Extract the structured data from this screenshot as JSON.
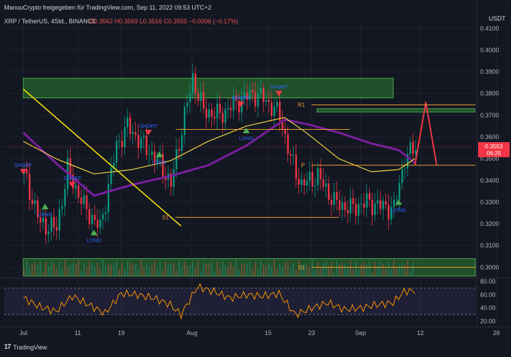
{
  "header": {
    "title": "ManuuCrypto freigegeben für TradingView.com, Sep 11, 2022 09:53 UTC+2",
    "symbol": "XRP / TetherUS, 4Std., BINANCE",
    "ohlc": "O0.3562 H0.3569 L0.3516 C0.3555 −0.0006 (−0.17%)"
  },
  "price_tag": {
    "price": "0.3553",
    "countdown": "06:25"
  },
  "footer": {
    "brand": "TradingView",
    "logo_glyph": "17"
  },
  "chart_data": {
    "type": "line",
    "ylabel": "USDT",
    "ylim": [
      0.296,
      0.412
    ],
    "y_ticks": [
      "0.4100",
      "0.4000",
      "0.3900",
      "0.3800",
      "0.3700",
      "0.3600",
      "0.3500",
      "0.3400",
      "0.3300",
      "0.3200",
      "0.3100",
      "0.3000"
    ],
    "x_ticks": [
      "Jul",
      "11",
      "19",
      "Aug",
      "15",
      "23",
      "Sep",
      "12",
      "26"
    ],
    "price_series": {
      "name": "XRP / TetherUS",
      "x": [
        "Jul 1",
        "Jul 4",
        "Jul 7",
        "Jul 9",
        "Jul 12",
        "Jul 15",
        "Jul 18",
        "Jul 20",
        "Jul 23",
        "Jul 26",
        "Jul 28",
        "Jul 30",
        "Aug 1",
        "Aug 3",
        "Aug 6",
        "Aug 9",
        "Aug 12",
        "Aug 14",
        "Aug 17",
        "Aug 19",
        "Aug 21",
        "Aug 24",
        "Aug 27",
        "Aug 30",
        "Sep 2",
        "Sep 5",
        "Sep 7",
        "Sep 9",
        "Sep 11"
      ],
      "y": [
        0.343,
        0.32,
        0.318,
        0.345,
        0.328,
        0.318,
        0.356,
        0.365,
        0.356,
        0.348,
        0.338,
        0.364,
        0.387,
        0.372,
        0.37,
        0.376,
        0.38,
        0.378,
        0.37,
        0.35,
        0.338,
        0.342,
        0.33,
        0.327,
        0.33,
        0.328,
        0.327,
        0.35,
        0.3555
      ],
      "color": "#089981"
    },
    "ma_fast": {
      "x": [
        "Jul 1",
        "Jul 7",
        "Jul 14",
        "Jul 21",
        "Jul 28",
        "Aug 4",
        "Aug 11",
        "Aug 18",
        "Aug 22",
        "Aug 28",
        "Sep 3",
        "Sep 8",
        "Sep 11"
      ],
      "y": [
        0.358,
        0.35,
        0.343,
        0.345,
        0.349,
        0.358,
        0.365,
        0.369,
        0.362,
        0.35,
        0.344,
        0.345,
        0.35
      ],
      "color": "#f5d742"
    },
    "ma_slow": {
      "x": [
        "Jul 1",
        "Jul 7",
        "Jul 14",
        "Jul 21",
        "Jul 28",
        "Aug 4",
        "Aug 11",
        "Aug 18",
        "Aug 22",
        "Aug 28",
        "Sep 3",
        "Sep 8",
        "Sep 11"
      ],
      "y": [
        0.362,
        0.348,
        0.333,
        0.338,
        0.342,
        0.347,
        0.356,
        0.368,
        0.366,
        0.362,
        0.357,
        0.354,
        0.348
      ],
      "color": "#7b1fa2"
    },
    "trendline": {
      "x": [
        "Jul 1",
        "Jul 30"
      ],
      "y": [
        0.382,
        0.319
      ],
      "color": "#f5e10a"
    },
    "zones": [
      {
        "x": [
          "Jul 1",
          "Sep 7"
        ],
        "y": [
          0.378,
          0.387
        ],
        "color": "#2e7d32"
      },
      {
        "x": [
          "Aug 24",
          "Sep 22"
        ],
        "y": [
          0.3715,
          0.373
        ],
        "color": "#2e7d32"
      },
      {
        "x": [
          "Jul 1",
          "Oct 1"
        ],
        "y": [
          0.296,
          0.304
        ],
        "color": "#2e7d32"
      }
    ],
    "levels": [
      {
        "label": "R1",
        "price": 0.3748,
        "x": [
          "Aug 23",
          "Oct 1"
        ],
        "color": "#f0a030"
      },
      {
        "label": "P",
        "price": 0.347,
        "x": [
          "Aug 23",
          "Oct 1"
        ],
        "color": "#f0a030"
      },
      {
        "label": "S1",
        "price": 0.3,
        "x": [
          "Aug 23",
          "Oct 1"
        ],
        "color": "#f0a030"
      },
      {
        "label": "S1",
        "price": 0.323,
        "x": [
          "Jul 29",
          "Aug 28"
        ],
        "color": "#f0a030"
      },
      {
        "label": "",
        "price": 0.3635,
        "x": [
          "Jul 29",
          "Aug 30"
        ],
        "color": "#f0a030"
      }
    ],
    "forecast": {
      "x": [
        "Sep 11",
        "Sep 13",
        "Sep 15"
      ],
      "y": [
        0.347,
        0.376,
        0.347
      ],
      "color": "#f23645"
    },
    "signals": [
      {
        "text": "SHORT",
        "x": "Jul 1",
        "price": 0.344,
        "kind": "short"
      },
      {
        "text": "LONG",
        "x": "Jul 5",
        "price": 0.328,
        "kind": "long"
      },
      {
        "text": "SHORT",
        "x": "Jul 10",
        "price": 0.338,
        "kind": "short"
      },
      {
        "text": "LONG",
        "x": "Jul 14",
        "price": 0.316,
        "kind": "long"
      },
      {
        "text": "SHORT",
        "x": "Jul 24",
        "price": 0.362,
        "kind": "short"
      },
      {
        "text": "LONG",
        "x": "Jul 26",
        "price": 0.352,
        "kind": "long"
      },
      {
        "text": "SHORT",
        "x": "Aug 10",
        "price": 0.375,
        "kind": "short"
      },
      {
        "text": "LONG",
        "x": "Aug 11",
        "price": 0.363,
        "kind": "long"
      },
      {
        "text": "SHORT",
        "x": "Aug 17",
        "price": 0.38,
        "kind": "short"
      },
      {
        "text": "LONG",
        "x": "Sep 8",
        "price": 0.33,
        "kind": "long"
      }
    ],
    "rsi": {
      "ylim": [
        20,
        80
      ],
      "y_ticks": [
        "80.00",
        "60.00",
        "40.00",
        "20.00"
      ],
      "bands": [
        30,
        70
      ],
      "x": [
        "Jul 1",
        "Jul 4",
        "Jul 7",
        "Jul 10",
        "Jul 13",
        "Jul 16",
        "Jul 19",
        "Jul 22",
        "Jul 25",
        "Jul 28",
        "Jul 30",
        "Aug 2",
        "Aug 5",
        "Aug 8",
        "Aug 11",
        "Aug 14",
        "Aug 17",
        "Aug 20",
        "Aug 23",
        "Aug 26",
        "Aug 29",
        "Sep 1",
        "Sep 4",
        "Sep 7",
        "Sep 9",
        "Sep 11"
      ],
      "y": [
        55,
        42,
        35,
        58,
        45,
        32,
        62,
        60,
        55,
        45,
        30,
        72,
        65,
        55,
        60,
        58,
        62,
        30,
        40,
        48,
        38,
        40,
        45,
        48,
        65,
        66
      ],
      "color": "#ff9800"
    }
  }
}
